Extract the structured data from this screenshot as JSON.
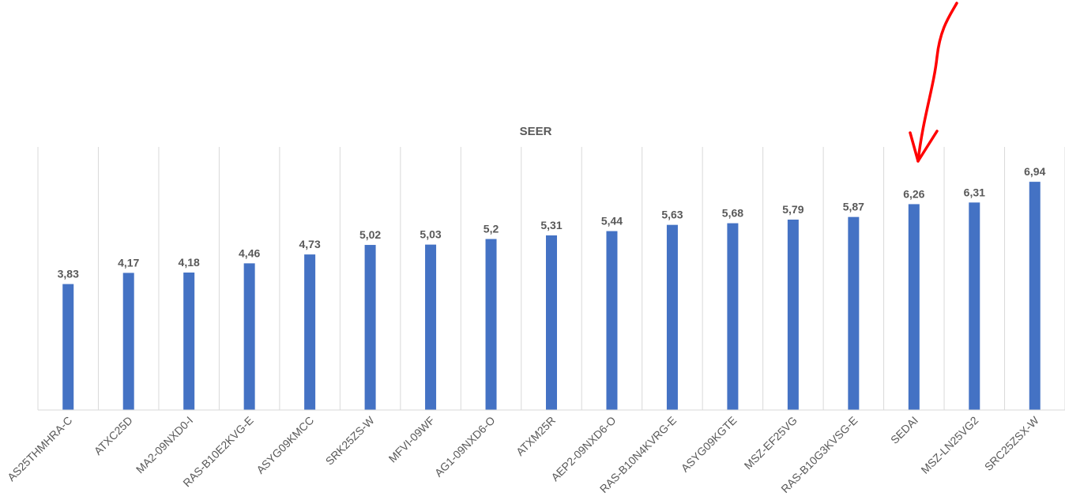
{
  "chart_data": {
    "type": "bar",
    "title": "SEER",
    "xlabel": "",
    "ylabel": "",
    "categories": [
      "AS25THMHRA-C",
      "ATXC25D",
      "MA2-09NXD0-I",
      "RAS-B10E2KVG-E",
      "ASYG09KMCC",
      "SRK25ZS-W",
      "MFVI-09WF",
      "AG1-09NXD6-O",
      "ATXM25R",
      "AEP2-09NXD6-O",
      "RAS-B10N4KVRG-E",
      "ASYG09KGTE",
      "MSZ-EF25VG",
      "RAS-B10G3KVSG-E",
      "SEDAI",
      "MSZ-LN25VG2",
      "SRC25ZSX-W"
    ],
    "values": [
      3.83,
      4.17,
      4.18,
      4.46,
      4.73,
      5.02,
      5.03,
      5.2,
      5.31,
      5.44,
      5.63,
      5.68,
      5.79,
      5.87,
      6.26,
      6.31,
      6.94
    ],
    "data_labels": [
      "3,83",
      "4,17",
      "4,18",
      "4,46",
      "4,73",
      "5,02",
      "5,03",
      "5,2",
      "5,31",
      "5,44",
      "5,63",
      "5,68",
      "5,79",
      "5,87",
      "6,26",
      "6,31",
      "6,94"
    ],
    "ylim": [
      0,
      8
    ],
    "grid": "vertical",
    "bar_color": "#4472C4",
    "annotation": {
      "type": "arrow",
      "color": "#FF0000",
      "target": "SEDAI"
    }
  }
}
